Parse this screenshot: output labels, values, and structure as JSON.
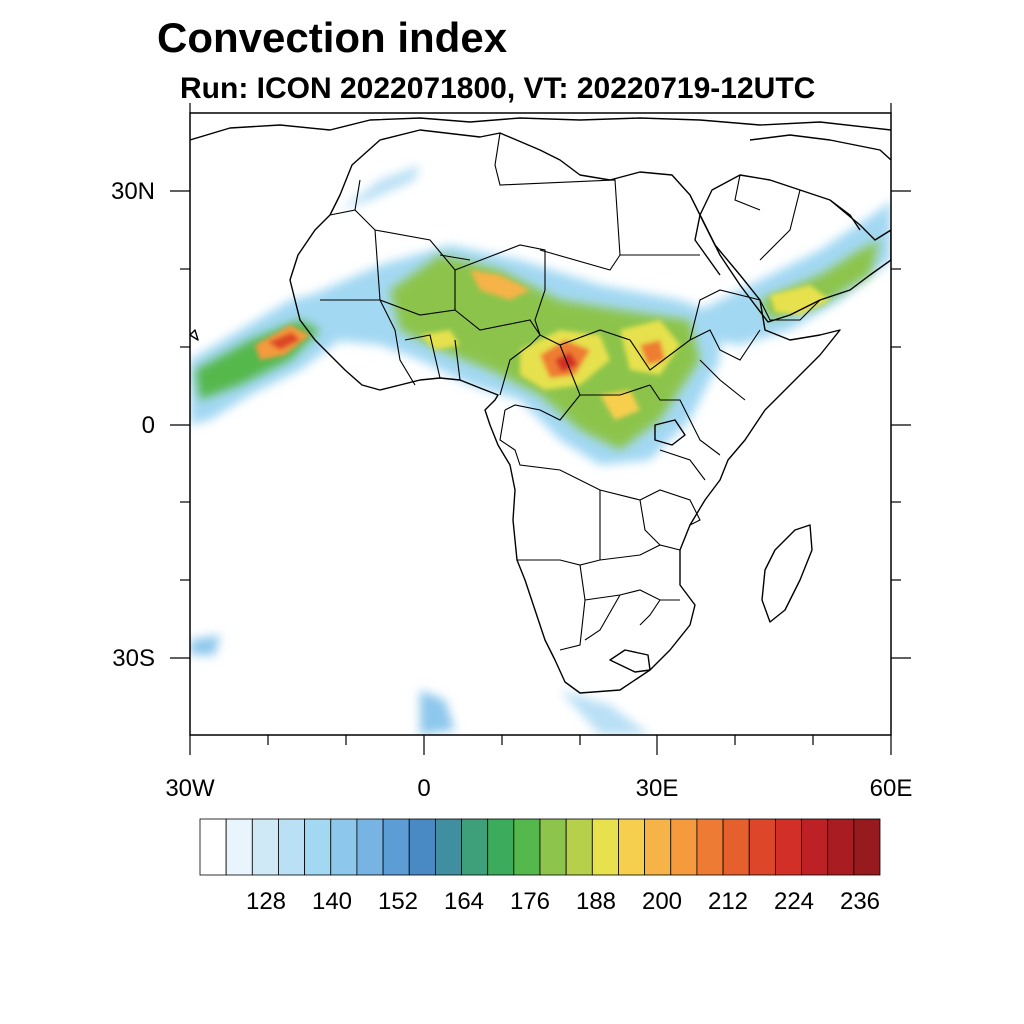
{
  "title": "Convection index",
  "subtitle": "Run: ICON 2022071800,  VT: 20220719-12UTC",
  "map": {
    "region": "Africa",
    "lat_labels": [
      "30N",
      "0",
      "30S"
    ],
    "lon_labels": [
      "30W",
      "0",
      "30E",
      "60E"
    ],
    "lat_values": [
      30,
      0,
      -30
    ],
    "lon_values": [
      -30,
      0,
      30,
      60
    ],
    "extent": {
      "lon_min": -30,
      "lon_max": 60,
      "lat_min": -40,
      "lat_max": 40
    }
  },
  "colorbar": {
    "labels": [
      "128",
      "140",
      "152",
      "164",
      "176",
      "188",
      "200",
      "212",
      "224",
      "236"
    ],
    "colors": [
      "#ffffff",
      "#e8f5fc",
      "#cfe9f7",
      "#b9e0f5",
      "#a3d8f3",
      "#8dc7ec",
      "#77b4e3",
      "#5c9dd6",
      "#4a8ac4",
      "#3f8fa0",
      "#3ea07a",
      "#3dab5c",
      "#55b84c",
      "#8cc44c",
      "#b6d04b",
      "#e6e14d",
      "#f7cf4e",
      "#f6b347",
      "#f59a3d",
      "#ee7b33",
      "#e5602d",
      "#dd4628",
      "#d22f26",
      "#bd2125",
      "#a91c22",
      "#961a1e"
    ]
  }
}
